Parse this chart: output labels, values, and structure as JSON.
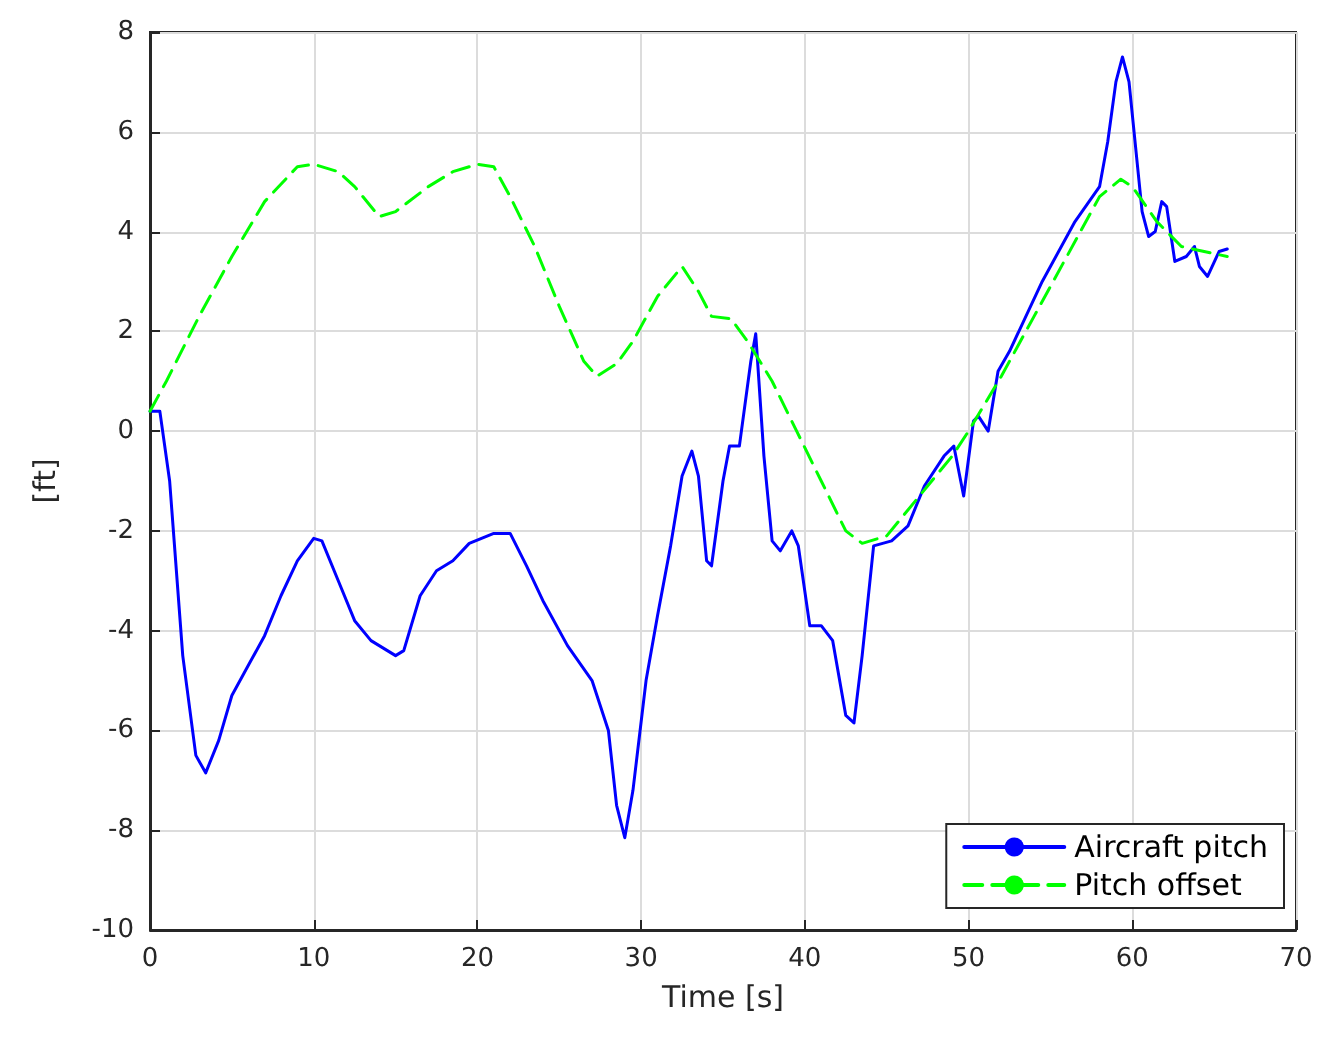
{
  "chart_data": {
    "type": "line",
    "xlabel": "Time [s]",
    "ylabel": "[ft]",
    "xlim": [
      0,
      70
    ],
    "ylim": [
      -10,
      8
    ],
    "xticks": [
      0,
      10,
      20,
      30,
      40,
      50,
      60,
      70
    ],
    "yticks": [
      -10,
      -8,
      -6,
      -4,
      -2,
      0,
      2,
      4,
      6,
      8
    ],
    "grid": true,
    "legend": "bottom right",
    "marker": "none",
    "series": [
      {
        "name": "Aircraft pitch",
        "color": "#0000ff",
        "line_style": "solid",
        "x": [
          0,
          0.6,
          1.2,
          2,
          2.8,
          3.4,
          4.2,
          5,
          6,
          7,
          8,
          9,
          10,
          10.5,
          11.5,
          12.5,
          13.5,
          15,
          15.5,
          16.5,
          17.5,
          18.5,
          19.5,
          21,
          22,
          23,
          24,
          25.5,
          27,
          28,
          28.5,
          29,
          29.5,
          30.3,
          31,
          31.8,
          32.5,
          33.1,
          33.5,
          34,
          34.3,
          35,
          35.4,
          36,
          36.7,
          37,
          37.5,
          38,
          38.5,
          39.2,
          39.6,
          40.3,
          41,
          41.7,
          42.5,
          43,
          43.5,
          44.2,
          45.3,
          46.3,
          47.3,
          48.5,
          49.1,
          49.7,
          50.3,
          50.6,
          51.2,
          51.8,
          52.5,
          54.5,
          56.5,
          58,
          58.5,
          59,
          59.4,
          59.8,
          60.6,
          61,
          61.4,
          61.8,
          62.1,
          62.6,
          63.3,
          63.8,
          64.1,
          64.6,
          65.3,
          65.8
        ],
        "values": [
          0.4,
          0.4,
          -1,
          -4.5,
          -6.5,
          -6.85,
          -6.2,
          -5.3,
          -4.7,
          -4.1,
          -3.3,
          -2.6,
          -2.15,
          -2.2,
          -3,
          -3.8,
          -4.2,
          -4.5,
          -4.4,
          -3.3,
          -2.8,
          -2.6,
          -2.25,
          -2.05,
          -2.05,
          -2.7,
          -3.4,
          -4.3,
          -5,
          -6,
          -7.5,
          -8.15,
          -7.2,
          -5,
          -3.7,
          -2.3,
          -0.9,
          -0.4,
          -0.9,
          -2.6,
          -2.7,
          -1,
          -0.3,
          -0.3,
          1.4,
          1.95,
          -0.5,
          -2.2,
          -2.4,
          -2,
          -2.3,
          -3.9,
          -3.9,
          -4.2,
          -5.7,
          -5.85,
          -4.5,
          -2.3,
          -2.2,
          -1.9,
          -1.1,
          -0.5,
          -0.3,
          -1.3,
          0.2,
          0.3,
          0,
          1.2,
          1.6,
          3,
          4.2,
          4.9,
          5.8,
          7,
          7.5,
          7,
          4.4,
          3.9,
          4,
          4.6,
          4.5,
          3.4,
          3.5,
          3.7,
          3.3,
          3.1,
          3.6,
          3.65
        ]
      },
      {
        "name": "Pitch offset",
        "color": "#00ff00",
        "line_style": "dashed",
        "x": [
          0,
          1,
          3,
          5,
          7,
          9,
          10,
          11.5,
          12.5,
          14,
          15,
          17,
          18.5,
          20,
          21,
          22,
          23.5,
          25,
          26.5,
          27.3,
          28.5,
          29.5,
          31,
          32.5,
          33.5,
          34.3,
          35.5,
          36.5,
          38,
          39.5,
          41,
          42.5,
          43.5,
          45,
          47,
          49,
          50,
          52,
          54,
          56,
          58,
          59.3,
          60,
          61.5,
          63,
          65.8
        ],
        "values": [
          0.4,
          1,
          2.3,
          3.5,
          4.6,
          5.3,
          5.35,
          5.2,
          4.9,
          4.3,
          4.4,
          4.9,
          5.2,
          5.35,
          5.3,
          4.7,
          3.7,
          2.5,
          1.4,
          1.1,
          1.35,
          1.8,
          2.7,
          3.3,
          2.8,
          2.3,
          2.25,
          1.8,
          1,
          0,
          -1,
          -2,
          -2.25,
          -2.1,
          -1.3,
          -0.5,
          0,
          1.1,
          2.3,
          3.5,
          4.7,
          5.05,
          4.9,
          4.2,
          3.7,
          3.5
        ]
      }
    ]
  }
}
